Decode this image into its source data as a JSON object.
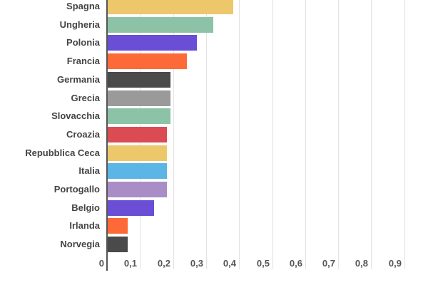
{
  "chart_data": {
    "type": "bar",
    "orientation": "horizontal",
    "title": "",
    "xlabel": "",
    "ylabel": "",
    "xlim": [
      0,
      0.9
    ],
    "grid": true,
    "categories": [
      "Spagna",
      "Ungheria",
      "Polonia",
      "Francia",
      "Germania",
      "Grecia",
      "Slovacchia",
      "Croazia",
      "Repubblica Ceca",
      "Italia",
      "Portogallo",
      "Belgio",
      "Irlanda",
      "Norvegia"
    ],
    "values": [
      0.38,
      0.32,
      0.27,
      0.24,
      0.19,
      0.19,
      0.19,
      0.18,
      0.18,
      0.18,
      0.18,
      0.14,
      0.06,
      0.06
    ],
    "colors": [
      "#ECC86B",
      "#8CC3A6",
      "#6A4FD6",
      "#FE6938",
      "#4A4A4A",
      "#9A9A9A",
      "#8CC3A6",
      "#DB4C52",
      "#ECC86B",
      "#5BB5E5",
      "#A98DC6",
      "#6A4FD6",
      "#FE6938",
      "#4A4A4A"
    ],
    "x_ticks": [
      "0",
      "0,1",
      "0,2",
      "0,3",
      "0,4",
      "0,5",
      "0,6",
      "0,7",
      "0,8",
      "0,9"
    ]
  }
}
